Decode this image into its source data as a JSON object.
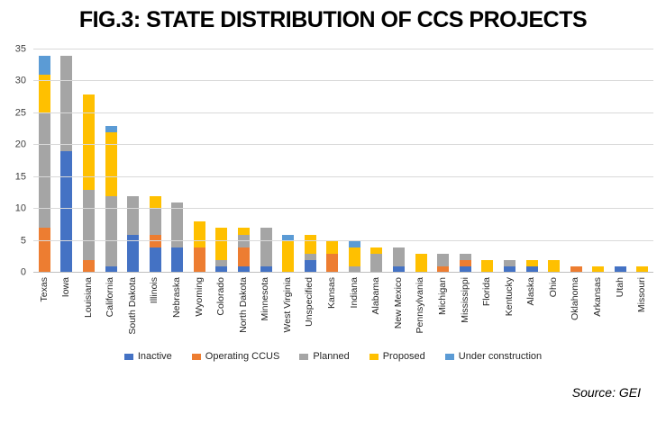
{
  "title": "FIG.3: STATE DISTRIBUTION OF CCS PROJECTS",
  "source_note": "Source: GEI",
  "colors": {
    "inactive": "#4472C4",
    "operating_ccus": "#ED7D31",
    "planned": "#A5A5A5",
    "proposed": "#FFC000",
    "under_construction": "#5B9BD5",
    "gridline": "#D9D9D9",
    "axis_line": "#BFBFBF"
  },
  "chart_data": {
    "type": "bar",
    "stacked": true,
    "title": "FIG.3: STATE DISTRIBUTION OF CCS PROJECTS",
    "xlabel": "",
    "ylabel": "",
    "ylim": [
      0,
      35
    ],
    "yticks": [
      0,
      5,
      10,
      15,
      20,
      25,
      30,
      35
    ],
    "grid": true,
    "legend_position": "bottom",
    "categories": [
      "Texas",
      "Iowa",
      "Louisiana",
      "California",
      "South Dakota",
      "Illinois",
      "Nebraska",
      "Wyoming",
      "Colorado",
      "North Dakota",
      "Minnesota",
      "West Virginia",
      "Unspecified",
      "Kansas",
      "Indiana",
      "Alabama",
      "New Mexico",
      "Pennsylvania",
      "Michigan",
      "Mississippi",
      "Florida",
      "Kentucky",
      "Alaska",
      "Ohio",
      "Oklahoma",
      "Arkansas",
      "Utah",
      "Missouri"
    ],
    "series": [
      {
        "name": "Inactive",
        "color": "#4472C4",
        "values": [
          0,
          19,
          0,
          1,
          6,
          4,
          4,
          0,
          1,
          1,
          1,
          0,
          2,
          0,
          0,
          0,
          1,
          0,
          0,
          1,
          0,
          1,
          1,
          0,
          0,
          0,
          1,
          0
        ]
      },
      {
        "name": "Operating CCUS",
        "color": "#ED7D31",
        "values": [
          7,
          0,
          2,
          0,
          0,
          2,
          0,
          4,
          0,
          3,
          0,
          0,
          0,
          3,
          0,
          0,
          0,
          0,
          1,
          1,
          0,
          0,
          0,
          0,
          1,
          0,
          0,
          0
        ]
      },
      {
        "name": "Planned",
        "color": "#A5A5A5",
        "values": [
          18,
          15,
          11,
          11,
          6,
          4,
          7,
          0,
          1,
          2,
          6,
          0,
          1,
          0,
          1,
          3,
          3,
          0,
          2,
          1,
          0,
          1,
          0,
          0,
          0,
          0,
          0,
          0
        ]
      },
      {
        "name": "Proposed",
        "color": "#FFC000",
        "values": [
          6,
          0,
          15,
          10,
          0,
          2,
          0,
          4,
          5,
          1,
          0,
          5,
          3,
          2,
          3,
          1,
          0,
          3,
          0,
          0,
          2,
          0,
          1,
          2,
          0,
          1,
          0,
          1
        ]
      },
      {
        "name": "Under construction",
        "color": "#5B9BD5",
        "values": [
          3,
          0,
          0,
          1,
          0,
          0,
          0,
          0,
          0,
          0,
          0,
          1,
          0,
          0,
          1,
          0,
          0,
          0,
          0,
          0,
          0,
          0,
          0,
          0,
          0,
          0,
          0,
          0
        ]
      }
    ]
  }
}
